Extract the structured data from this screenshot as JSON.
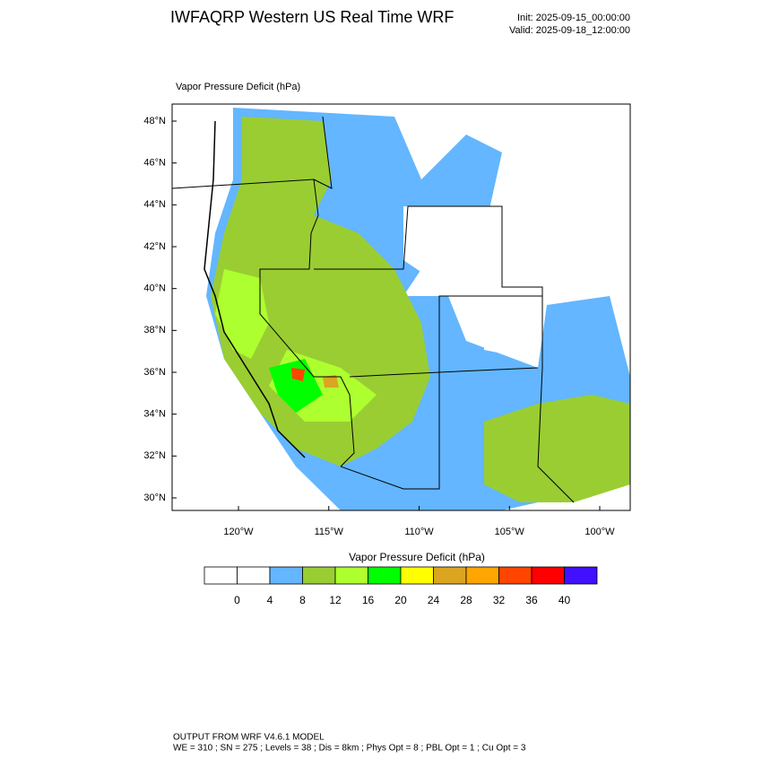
{
  "header": {
    "title": "IWFAQRP Western US Real Time WRF",
    "init": "Init: 2025-09-15_00:00:00",
    "valid": "Valid: 2025-09-18_12:00:00"
  },
  "map": {
    "title": "Vapor Pressure Deficit   (hPa)",
    "lat_labels": [
      "48°N",
      "46°N",
      "44°N",
      "42°N",
      "40°N",
      "38°N",
      "36°N",
      "34°N",
      "32°N",
      "30°N"
    ],
    "lon_labels": [
      "120°W",
      "115°W",
      "110°W",
      "105°W",
      "100°W"
    ]
  },
  "colorbar": {
    "title": "Vapor Pressure Deficit  (hPa)",
    "colors": [
      "#ffffff",
      "#ffffff",
      "#63b6ff",
      "#9acd32",
      "#adff2f",
      "#00ff00",
      "#ffff00",
      "#daa520",
      "#ffa500",
      "#ff4500",
      "#ff0000",
      "#4010ff"
    ],
    "labels": [
      "0",
      "4",
      "8",
      "12",
      "16",
      "20",
      "24",
      "28",
      "32",
      "36",
      "40"
    ]
  },
  "footer": {
    "lines": [
      "OUTPUT FROM WRF V4.6.1 MODEL",
      "WE = 310 ; SN = 275 ; Levels = 38 ; Dis = 8km ; Phys Opt = 8 ; PBL Opt = 1 ; Cu Opt = 3"
    ]
  }
}
